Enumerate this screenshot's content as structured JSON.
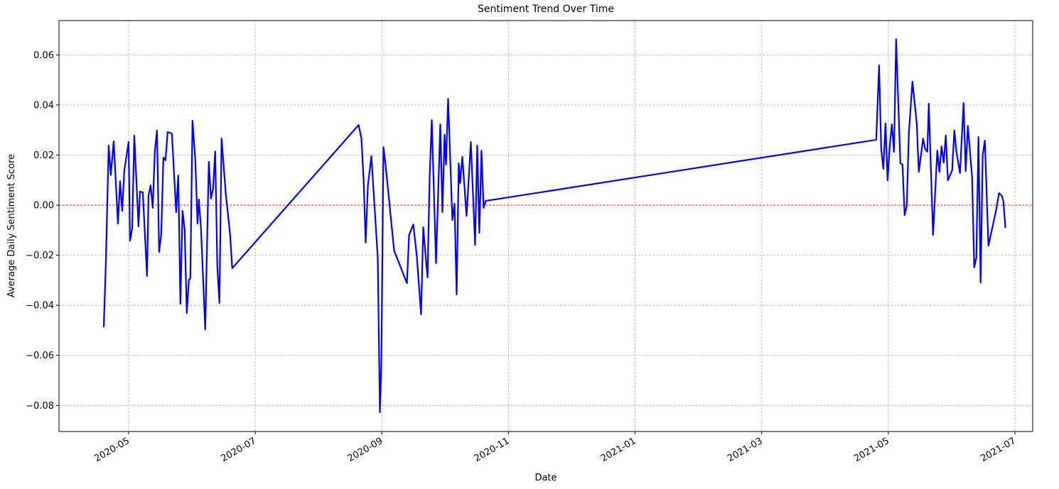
{
  "chart_data": {
    "type": "line",
    "title": "Sentiment Trend Over Time",
    "x_label": "Date",
    "y_label": "Average Daily Sentiment Score",
    "color": "blue",
    "grid": true,
    "hline": {
      "value": 0,
      "color": "red"
    },
    "xlim": [
      2020.2417,
      2021.5234
    ],
    "ylim": [
      -0.0904,
      0.0737
    ],
    "xticks": [
      {
        "value": 2020.3333,
        "label": "2020-05"
      },
      {
        "value": 2020.5,
        "label": "2020-07"
      },
      {
        "value": 2020.6667,
        "label": "2020-09"
      },
      {
        "value": 2020.8333,
        "label": "2020-11"
      },
      {
        "value": 2021,
        "label": "2021-01"
      },
      {
        "value": 2021.1667,
        "label": "2021-03"
      },
      {
        "value": 2021.3333,
        "label": "2021-05"
      },
      {
        "value": 2021.5,
        "label": "2021-07"
      }
    ],
    "yticks": [
      {
        "value": -0.08,
        "label": "−0.08"
      },
      {
        "value": -0.06,
        "label": "−0.06"
      },
      {
        "value": -0.04,
        "label": "−0.04"
      },
      {
        "value": -0.02,
        "label": "−0.02"
      },
      {
        "value": 0,
        "label": "0.00"
      },
      {
        "value": 0.02,
        "label": "0.02"
      },
      {
        "value": 0.04,
        "label": "0.04"
      },
      {
        "value": 0.06,
        "label": "0.06"
      }
    ],
    "x": [
      2020.3006,
      2020.3034,
      2020.3071,
      2020.3099,
      2020.3137,
      2020.3193,
      2020.3221,
      2020.3249,
      2020.3277,
      2020.3333,
      2020.3352,
      2020.338,
      2020.3408,
      2020.3464,
      2020.3483,
      2020.352,
      2020.3576,
      2020.3595,
      2020.3623,
      2020.3651,
      2020.3679,
      2020.3707,
      2020.3735,
      2020.3763,
      2020.3791,
      2020.3819,
      2020.3847,
      2020.3903,
      2020.3959,
      2020.3987,
      2020.4015,
      2020.4043,
      2020.4071,
      2020.4099,
      2020.4127,
      2020.4146,
      2020.4174,
      2020.4212,
      2020.424,
      2020.4258,
      2020.4286,
      2020.4342,
      2020.4389,
      2020.4417,
      2020.4445,
      2020.4473,
      2020.4501,
      2020.4529,
      2020.4557,
      2020.4613,
      2020.4669,
      2020.4697,
      2020.6361,
      2020.6398,
      2020.6426,
      2020.6454,
      2020.6483,
      2020.6529,
      2020.6567,
      2020.6613,
      2020.6641,
      2020.666,
      2020.6688,
      2020.6716,
      2020.6754,
      2020.6828,
      2020.6997,
      2020.7025,
      2020.7081,
      2020.7127,
      2020.7183,
      2020.7212,
      2020.724,
      2020.7268,
      2020.7296,
      2020.7324,
      2020.738,
      2020.7436,
      2020.7464,
      2020.7492,
      2020.7511,
      2020.7539,
      2020.7595,
      2020.7623,
      2020.7651,
      2020.7679,
      2020.7697,
      2020.7726,
      2020.7782,
      2020.7838,
      2020.7894,
      2020.7922,
      2020.795,
      2020.7978,
      2020.8006,
      2020.8034,
      2021.3174,
      2021.3212,
      2021.324,
      2021.3268,
      2021.3296,
      2021.3324,
      2021.3352,
      2021.338,
      2021.3408,
      2021.3436,
      2021.3492,
      2021.352,
      2021.3548,
      2021.3576,
      2021.3604,
      2021.3651,
      2021.3707,
      2021.3735,
      2021.3791,
      2021.3819,
      2021.3847,
      2021.3866,
      2021.3922,
      2021.3978,
      2021.4006,
      2021.4034,
      2021.4062,
      2021.409,
      2021.4118,
      2021.4174,
      2021.4202,
      2021.423,
      2021.4277,
      2021.4324,
      2021.4352,
      2021.438,
      2021.4436,
      2021.4464,
      2021.4492,
      2021.452,
      2021.4548,
      2021.4576,
      2021.4604,
      2021.4651,
      2021.4754,
      2021.4791,
      2021.4828,
      2021.4847,
      2021.4875
    ],
    "values": [
      -0.0487,
      -0.023,
      0.0238,
      0.012,
      0.0255,
      -0.0074,
      0.0096,
      -0.0023,
      0.0139,
      0.0252,
      -0.0142,
      -0.0094,
      0.0278,
      -0.0085,
      0.0054,
      0.0051,
      -0.0283,
      0.0037,
      0.0079,
      -0.0011,
      0.0218,
      0.0298,
      -0.0187,
      -0.0116,
      0.019,
      0.0179,
      0.0292,
      0.0286,
      -0.0028,
      0.0119,
      -0.0394,
      -0.0023,
      -0.0096,
      -0.0431,
      -0.0298,
      -0.0292,
      0.0337,
      0.0176,
      -0.0074,
      0.0023,
      -0.0094,
      -0.0496,
      0.0173,
      0.0026,
      0.0065,
      0.0215,
      -0.0244,
      -0.0391,
      0.0266,
      0.0043,
      -0.0116,
      -0.0252,
      0.032,
      0.0266,
      0.0105,
      -0.015,
      0.0077,
      0.0196,
      0.0011,
      -0.021,
      -0.0828,
      -0.0626,
      0.0232,
      0.0159,
      0.0045,
      -0.0181,
      -0.0312,
      -0.0119,
      -0.0077,
      -0.0204,
      -0.0436,
      -0.0088,
      -0.0193,
      -0.0289,
      0.0113,
      0.034,
      -0.0232,
      0.0323,
      -0.0028,
      0.0281,
      0.0162,
      0.0425,
      -0.006,
      0.0006,
      -0.0357,
      0.0167,
      0.0088,
      0.0193,
      -0.0043,
      0.0252,
      -0.0159,
      0.0238,
      -0.0111,
      0.0218,
      -0.0011,
      0.0017,
      0.0261,
      0.0558,
      0.0224,
      0.0145,
      0.0326,
      0.0099,
      0.0235,
      0.0323,
      0.0213,
      0.0663,
      0.0167,
      0.0162,
      -0.004,
      -0.0003,
      0.0289,
      0.0493,
      0.0329,
      0.0133,
      0.0266,
      0.0224,
      0.0213,
      0.0405,
      -0.0119,
      0.0218,
      0.0133,
      0.0235,
      0.017,
      0.0278,
      0.0099,
      0.0139,
      0.0298,
      0.0213,
      0.0128,
      0.0408,
      0.0136,
      0.0317,
      0.0113,
      -0.0249,
      -0.021,
      0.0272,
      -0.0309,
      0.0201,
      0.0258,
      -0.0162,
      -0.0017,
      0.0048,
      0.0037,
      0.0017,
      -0.0091
    ]
  }
}
